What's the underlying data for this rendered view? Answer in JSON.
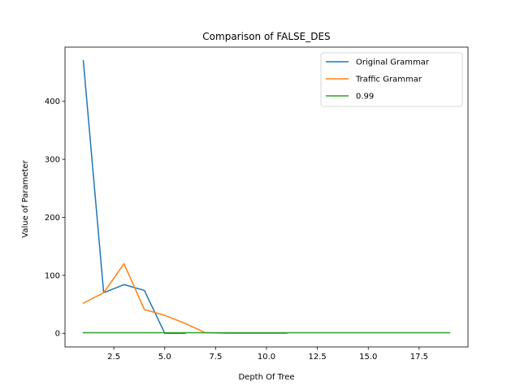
{
  "chart_data": {
    "type": "line",
    "title": "Comparison of FALSE_DES",
    "xlabel": "Depth Of Tree",
    "ylabel": "Value of Parameter",
    "xlim": [
      0.1,
      19.9
    ],
    "ylim": [
      -23.5,
      493.5
    ],
    "xticks": [
      2.5,
      5.0,
      7.5,
      10.0,
      12.5,
      15.0,
      17.5
    ],
    "xtick_labels": [
      "2.5",
      "5.0",
      "7.5",
      "10.0",
      "12.5",
      "15.0",
      "17.5"
    ],
    "yticks": [
      0,
      100,
      200,
      300,
      400
    ],
    "ytick_labels": [
      "0",
      "100",
      "200",
      "300",
      "400"
    ],
    "grid": false,
    "legend_position": "top-right",
    "series": [
      {
        "name": "Original Grammar",
        "color": "#1f77b4",
        "x": [
          1,
          2,
          3,
          4,
          5,
          6
        ],
        "y": [
          470,
          70,
          84,
          74,
          0,
          0
        ]
      },
      {
        "name": "Traffic Grammar",
        "color": "#ff7f0e",
        "x": [
          1,
          2,
          3,
          4,
          5,
          6,
          7,
          8,
          9,
          10,
          11
        ],
        "y": [
          52,
          70,
          120,
          41,
          31,
          17,
          1,
          0,
          0,
          0,
          0
        ]
      },
      {
        "name": "0.99",
        "color": "#2ca02c",
        "x": [
          1,
          2,
          3,
          4,
          5,
          6,
          7,
          8,
          9,
          10,
          11,
          12,
          13,
          14,
          15,
          16,
          17,
          18,
          19
        ],
        "y": [
          0.99,
          0.99,
          0.99,
          0.99,
          0.99,
          0.99,
          0.99,
          0.99,
          0.99,
          0.99,
          0.99,
          0.99,
          0.99,
          0.99,
          0.99,
          0.99,
          0.99,
          0.99,
          0.99
        ]
      }
    ]
  }
}
